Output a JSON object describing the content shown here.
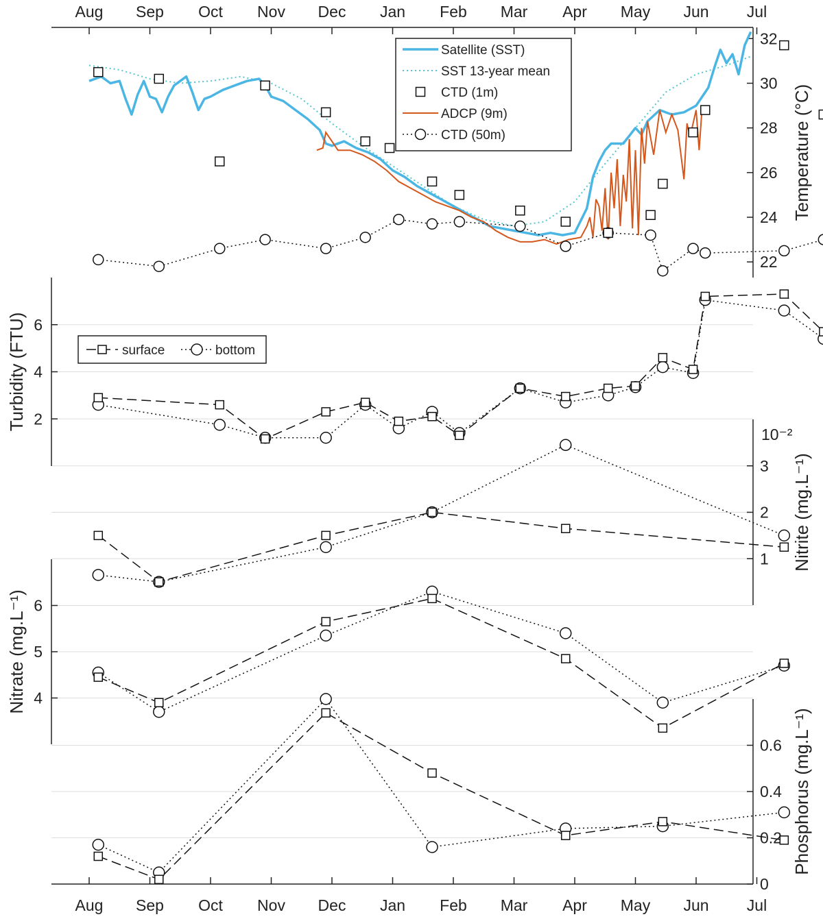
{
  "chart_data": {
    "type": "line",
    "months": [
      "Aug",
      "Sep",
      "Oct",
      "Nov",
      "Dec",
      "Jan",
      "Feb",
      "Mar",
      "Apr",
      "May",
      "Jun",
      "Jul"
    ],
    "colors": {
      "sst": "#4bb6e3",
      "sst_mean": "#52c6ce",
      "adcp": "#d4571c",
      "marker": "#111111",
      "grid": "#dddddd"
    },
    "panels": [
      {
        "id": "temperature",
        "ylabel": "Temperature (°C)",
        "yrange": [
          21.3,
          32.5
        ],
        "yticks": [
          22,
          24,
          26,
          28,
          30,
          32
        ],
        "ticklabels": [
          "22",
          "24",
          "26",
          "28",
          "30",
          "32"
        ],
        "legend": [
          "Satellite (SST)",
          "SST 13-year mean",
          "CTD (1m)",
          "ADCP (9m)",
          "CTD (50m)"
        ],
        "sst": [
          [
            0,
            30.1
          ],
          [
            0.2,
            30.3
          ],
          [
            0.35,
            30.0
          ],
          [
            0.5,
            30.1
          ],
          [
            0.6,
            29.3
          ],
          [
            0.7,
            28.6
          ],
          [
            0.8,
            29.5
          ],
          [
            0.9,
            30.1
          ],
          [
            1.0,
            29.4
          ],
          [
            1.1,
            29.3
          ],
          [
            1.2,
            28.7
          ],
          [
            1.3,
            29.4
          ],
          [
            1.4,
            29.9
          ],
          [
            1.5,
            30.1
          ],
          [
            1.6,
            30.3
          ],
          [
            1.7,
            29.6
          ],
          [
            1.8,
            28.8
          ],
          [
            1.9,
            29.3
          ],
          [
            2.0,
            29.4
          ],
          [
            2.2,
            29.7
          ],
          [
            2.4,
            29.9
          ],
          [
            2.6,
            30.1
          ],
          [
            2.8,
            30.2
          ],
          [
            2.9,
            29.9
          ],
          [
            3.0,
            29.4
          ],
          [
            3.2,
            29.2
          ],
          [
            3.4,
            28.8
          ],
          [
            3.6,
            28.4
          ],
          [
            3.8,
            27.9
          ],
          [
            3.9,
            27.3
          ],
          [
            4.0,
            27.2
          ],
          [
            4.2,
            27.4
          ],
          [
            4.4,
            27.1
          ],
          [
            4.6,
            26.9
          ],
          [
            4.8,
            26.6
          ],
          [
            5.0,
            26.1
          ],
          [
            5.2,
            25.8
          ],
          [
            5.4,
            25.4
          ],
          [
            5.6,
            25.1
          ],
          [
            5.8,
            24.8
          ],
          [
            6.0,
            24.5
          ],
          [
            6.2,
            24.2
          ],
          [
            6.4,
            23.9
          ],
          [
            6.6,
            23.6
          ],
          [
            6.8,
            23.5
          ],
          [
            7.0,
            23.4
          ],
          [
            7.2,
            23.3
          ],
          [
            7.4,
            23.2
          ],
          [
            7.6,
            23.3
          ],
          [
            7.8,
            23.2
          ],
          [
            8.0,
            23.3
          ],
          [
            8.2,
            24.4
          ],
          [
            8.3,
            25.8
          ],
          [
            8.4,
            26.5
          ],
          [
            8.5,
            27.0
          ],
          [
            8.6,
            27.3
          ],
          [
            8.8,
            27.3
          ],
          [
            9.0,
            28.0
          ],
          [
            9.1,
            27.7
          ],
          [
            9.2,
            28.3
          ],
          [
            9.4,
            28.8
          ],
          [
            9.6,
            28.6
          ],
          [
            9.8,
            28.7
          ],
          [
            10.0,
            29.0
          ],
          [
            10.2,
            29.8
          ],
          [
            10.3,
            30.7
          ],
          [
            10.4,
            31.5
          ],
          [
            10.5,
            30.9
          ],
          [
            10.6,
            31.3
          ],
          [
            10.7,
            30.4
          ],
          [
            10.8,
            31.7
          ],
          [
            10.9,
            32.3
          ]
        ],
        "sst_mean": [
          [
            0,
            30.8
          ],
          [
            0.5,
            30.6
          ],
          [
            1.0,
            30.2
          ],
          [
            1.5,
            30.0
          ],
          [
            2.0,
            30.1
          ],
          [
            2.5,
            30.3
          ],
          [
            3.0,
            30.0
          ],
          [
            3.5,
            29.3
          ],
          [
            4.0,
            28.2
          ],
          [
            4.5,
            27.2
          ],
          [
            5.0,
            26.3
          ],
          [
            5.5,
            25.4
          ],
          [
            6.0,
            24.5
          ],
          [
            6.5,
            23.9
          ],
          [
            7.0,
            23.6
          ],
          [
            7.5,
            23.8
          ],
          [
            8.0,
            24.7
          ],
          [
            8.5,
            26.4
          ],
          [
            9.0,
            28.0
          ],
          [
            9.5,
            29.6
          ],
          [
            10.0,
            30.4
          ],
          [
            10.5,
            30.8
          ],
          [
            10.9,
            31.2
          ]
        ],
        "adcp": [
          [
            3.75,
            27.0
          ],
          [
            3.85,
            27.1
          ],
          [
            3.9,
            27.8
          ],
          [
            4.0,
            27.4
          ],
          [
            4.1,
            27.0
          ],
          [
            4.3,
            27.0
          ],
          [
            4.5,
            26.8
          ],
          [
            4.7,
            26.5
          ],
          [
            4.9,
            26.1
          ],
          [
            5.1,
            25.6
          ],
          [
            5.3,
            25.3
          ],
          [
            5.5,
            25.0
          ],
          [
            5.7,
            24.7
          ],
          [
            5.9,
            24.5
          ],
          [
            6.1,
            24.3
          ],
          [
            6.3,
            24.0
          ],
          [
            6.5,
            23.8
          ],
          [
            6.7,
            23.4
          ],
          [
            6.9,
            23.1
          ],
          [
            7.1,
            22.9
          ],
          [
            7.3,
            22.9
          ],
          [
            7.5,
            23.0
          ],
          [
            7.7,
            22.8
          ],
          [
            7.9,
            23.0
          ],
          [
            8.1,
            23.1
          ],
          [
            8.2,
            23.6
          ],
          [
            8.25,
            24.0
          ],
          [
            8.3,
            23.1
          ],
          [
            8.35,
            24.8
          ],
          [
            8.4,
            24.5
          ],
          [
            8.45,
            23.4
          ],
          [
            8.5,
            25.3
          ],
          [
            8.55,
            23.0
          ],
          [
            8.6,
            26.0
          ],
          [
            8.65,
            24.4
          ],
          [
            8.7,
            26.6
          ],
          [
            8.75,
            23.6
          ],
          [
            8.8,
            25.9
          ],
          [
            8.85,
            24.7
          ],
          [
            8.9,
            27.5
          ],
          [
            8.95,
            23.5
          ],
          [
            9.0,
            27.0
          ],
          [
            9.05,
            23.2
          ],
          [
            9.1,
            28.0
          ],
          [
            9.15,
            26.4
          ],
          [
            9.2,
            28.3
          ],
          [
            9.3,
            26.8
          ],
          [
            9.4,
            28.8
          ],
          [
            9.5,
            27.8
          ],
          [
            9.6,
            28.6
          ],
          [
            9.7,
            27.9
          ],
          [
            9.8,
            25.7
          ],
          [
            9.85,
            28.2
          ],
          [
            9.9,
            27.6
          ],
          [
            10.0,
            28.8
          ],
          [
            10.05,
            27.0
          ],
          [
            10.1,
            29.0
          ]
        ],
        "ctd_1m": [
          [
            0.15,
            30.5
          ],
          [
            1.15,
            30.2
          ],
          [
            2.15,
            26.5
          ],
          [
            2.9,
            29.9
          ],
          [
            3.9,
            28.7
          ],
          [
            4.55,
            27.4
          ],
          [
            4.95,
            27.1
          ],
          [
            5.65,
            25.6
          ],
          [
            6.1,
            25.0
          ],
          [
            7.1,
            24.3
          ],
          [
            7.85,
            23.8
          ],
          [
            8.55,
            23.3
          ],
          [
            9.25,
            24.1
          ],
          [
            9.45,
            25.5
          ],
          [
            9.95,
            27.8
          ],
          [
            10.15,
            28.8
          ],
          [
            11.45,
            31.7
          ],
          [
            12.1,
            28.6
          ]
        ],
        "ctd_50m": [
          [
            0.15,
            22.1
          ],
          [
            1.15,
            21.8
          ],
          [
            2.15,
            22.6
          ],
          [
            2.9,
            23.0
          ],
          [
            3.9,
            22.6
          ],
          [
            4.55,
            23.1
          ],
          [
            5.1,
            23.9
          ],
          [
            5.65,
            23.7
          ],
          [
            6.1,
            23.8
          ],
          [
            7.1,
            23.6
          ],
          [
            7.85,
            22.7
          ],
          [
            8.55,
            23.3
          ],
          [
            9.25,
            23.2
          ],
          [
            9.45,
            21.6
          ],
          [
            9.95,
            22.6
          ],
          [
            10.15,
            22.4
          ],
          [
            11.45,
            22.5
          ],
          [
            12.1,
            23.0
          ]
        ]
      },
      {
        "id": "turbidity",
        "ylabel": "Turbidity (FTU)",
        "yrange": [
          0.0,
          8.0
        ],
        "yticks": [
          2,
          4,
          6
        ],
        "ticklabels": [
          "2",
          "4",
          "6"
        ],
        "legend": [
          "surface",
          "bottom"
        ],
        "surface": [
          [
            0.15,
            2.9
          ],
          [
            2.15,
            2.6
          ],
          [
            2.9,
            1.15
          ],
          [
            3.9,
            2.3
          ],
          [
            4.55,
            2.7
          ],
          [
            5.1,
            1.9
          ],
          [
            5.65,
            2.1
          ],
          [
            6.1,
            1.3
          ],
          [
            7.1,
            3.3
          ],
          [
            7.85,
            2.95
          ],
          [
            8.55,
            3.3
          ],
          [
            9.0,
            3.4
          ],
          [
            9.45,
            4.6
          ],
          [
            9.95,
            4.1
          ],
          [
            10.15,
            7.2
          ],
          [
            11.45,
            7.3
          ],
          [
            12.1,
            5.7
          ]
        ],
        "bottom": [
          [
            0.15,
            2.6
          ],
          [
            2.15,
            1.75
          ],
          [
            2.9,
            1.2
          ],
          [
            3.9,
            1.2
          ],
          [
            4.55,
            2.6
          ],
          [
            5.1,
            1.6
          ],
          [
            5.65,
            2.3
          ],
          [
            6.1,
            1.4
          ],
          [
            7.1,
            3.3
          ],
          [
            7.85,
            2.7
          ],
          [
            8.55,
            3.0
          ],
          [
            9.0,
            3.35
          ],
          [
            9.45,
            4.2
          ],
          [
            9.95,
            3.95
          ],
          [
            10.15,
            7.05
          ],
          [
            11.45,
            6.6
          ],
          [
            12.1,
            5.4
          ]
        ]
      },
      {
        "id": "nitrite",
        "ylabel": "Nitrite (mg.L⁻¹)",
        "exponent": "10⁻²",
        "yrange": [
          0.0,
          4.0
        ],
        "yticks": [
          1,
          2,
          3
        ],
        "ticklabels": [
          "1",
          "2",
          "3"
        ],
        "surface": [
          [
            0.15,
            1.5
          ],
          [
            1.15,
            0.5
          ],
          [
            3.9,
            1.5
          ],
          [
            5.65,
            2.0
          ],
          [
            7.85,
            1.65
          ],
          [
            11.45,
            1.25
          ]
        ],
        "bottom": [
          [
            0.15,
            0.65
          ],
          [
            1.15,
            0.5
          ],
          [
            3.9,
            1.25
          ],
          [
            5.65,
            2.0
          ],
          [
            7.85,
            3.45
          ],
          [
            11.45,
            1.5
          ]
        ]
      },
      {
        "id": "nitrate",
        "ylabel": "Nitrate (mg.L⁻¹)",
        "yrange": [
          3.0,
          7.0
        ],
        "yticks": [
          4,
          5,
          6
        ],
        "ticklabels": [
          "4",
          "5",
          "6"
        ],
        "surface": [
          [
            0.15,
            4.45
          ],
          [
            1.15,
            3.9
          ],
          [
            3.9,
            5.65
          ],
          [
            5.65,
            6.15
          ],
          [
            7.85,
            4.85
          ],
          [
            9.45,
            3.35
          ],
          [
            11.45,
            4.75
          ]
        ],
        "bottom": [
          [
            0.15,
            4.55
          ],
          [
            1.15,
            3.7
          ],
          [
            3.9,
            5.35
          ],
          [
            5.65,
            6.3
          ],
          [
            7.85,
            5.4
          ],
          [
            9.45,
            3.9
          ],
          [
            11.45,
            4.7
          ]
        ]
      },
      {
        "id": "phosphorus",
        "ylabel": "Phosphorus (mg.L⁻¹)",
        "yrange": [
          0.0,
          0.8
        ],
        "yticks": [
          0,
          0.2,
          0.4,
          0.6
        ],
        "ticklabels": [
          "0",
          "0.2",
          "0.4",
          "0.6"
        ],
        "surface": [
          [
            0.15,
            0.12
          ],
          [
            1.15,
            0.02
          ],
          [
            3.9,
            0.74
          ],
          [
            5.65,
            0.48
          ],
          [
            7.85,
            0.21
          ],
          [
            9.45,
            0.27
          ],
          [
            11.45,
            0.19
          ]
        ],
        "bottom": [
          [
            0.15,
            0.17
          ],
          [
            1.15,
            0.05
          ],
          [
            3.9,
            0.8
          ],
          [
            5.65,
            0.16
          ],
          [
            7.85,
            0.24
          ],
          [
            9.45,
            0.25
          ],
          [
            11.45,
            0.31
          ]
        ]
      }
    ]
  }
}
